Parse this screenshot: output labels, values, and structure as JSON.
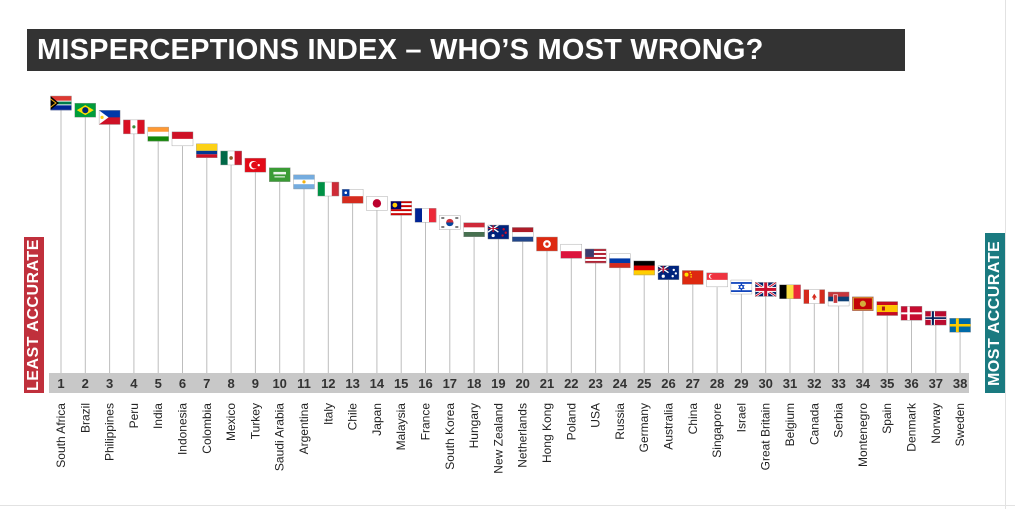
{
  "title": "MISPERCEPTIONS INDEX – WHO’S MOST WRONG?",
  "left_label": "LEAST ACCURATE",
  "right_label": "MOST ACCURATE",
  "colors": {
    "title_bg": "#333333",
    "least_accurate": "#c0303c",
    "most_accurate": "#1a7a80",
    "rank_band": "#c8c8c8",
    "stem": "#bdbdbd"
  },
  "chart_data": {
    "type": "scatter",
    "title": "MISPERCEPTIONS INDEX – WHO’S MOST WRONG?",
    "xlabel": "",
    "ylabel": "",
    "x_ranks": [
      1,
      2,
      3,
      4,
      5,
      6,
      7,
      8,
      9,
      10,
      11,
      12,
      13,
      14,
      15,
      16,
      17,
      18,
      19,
      20,
      21,
      22,
      23,
      24,
      25,
      26,
      27,
      28,
      29,
      30,
      31,
      32,
      33,
      34,
      35,
      36,
      37,
      38
    ],
    "categories": [
      "South Africa",
      "Brazil",
      "Philippines",
      "Peru",
      "India",
      "Indonesia",
      "Colombia",
      "Mexico",
      "Turkey",
      "Saudi Arabia",
      "Argentina",
      "Italy",
      "Chile",
      "Japan",
      "Malaysia",
      "France",
      "South Korea",
      "Hungary",
      "New Zealand",
      "Netherlands",
      "Hong Kong",
      "Poland",
      "USA",
      "Russia",
      "Germany",
      "Australia",
      "China",
      "Singapore",
      "Israel",
      "Great Britain",
      "Belgium",
      "Canada",
      "Serbia",
      "Montenegro",
      "Spain",
      "Denmark",
      "Norway",
      "Sweden"
    ],
    "values": [
      100,
      97,
      94,
      90,
      87,
      85,
      80,
      77,
      74,
      70,
      67,
      64,
      61,
      58,
      56,
      53,
      50,
      47,
      46,
      45,
      41,
      38,
      36,
      34,
      31,
      29,
      27,
      26,
      23,
      22,
      21,
      19,
      18,
      16,
      14,
      12,
      10,
      7
    ],
    "ylim": [
      0,
      100
    ],
    "grid": false,
    "markers": [
      "flag-za",
      "flag-br",
      "flag-ph",
      "flag-pe",
      "flag-in",
      "flag-id",
      "flag-co",
      "flag-mx",
      "flag-tr",
      "flag-sa",
      "flag-ar",
      "flag-it",
      "flag-cl",
      "flag-jp",
      "flag-my",
      "flag-fr",
      "flag-kr",
      "flag-hu",
      "flag-nz",
      "flag-nl",
      "flag-hk",
      "flag-pl",
      "flag-us",
      "flag-ru",
      "flag-de",
      "flag-au",
      "flag-cn",
      "flag-sg",
      "flag-il",
      "flag-gb",
      "flag-be",
      "flag-ca",
      "flag-rs",
      "flag-me",
      "flag-es",
      "flag-dk",
      "flag-no",
      "flag-se"
    ]
  }
}
